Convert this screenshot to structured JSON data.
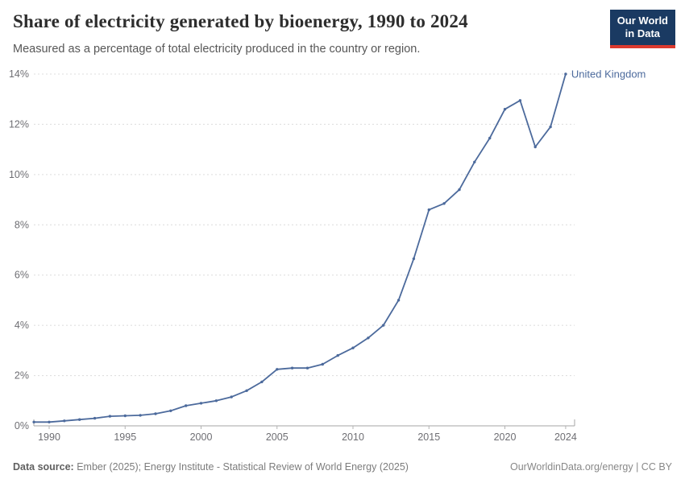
{
  "header": {
    "title": "Share of electricity generated by bioenergy, 1990 to 2024",
    "subtitle": "Measured as a percentage of total electricity produced in the country or region.",
    "logo": {
      "line1": "Our World",
      "line2": "in Data",
      "bg_color": "#1a3a62",
      "accent_color": "#dc3a2f"
    }
  },
  "chart_data": {
    "type": "line",
    "title": "Share of electricity generated by bioenergy, 1990 to 2024",
    "xlabel": "",
    "ylabel": "",
    "xlim": [
      1989,
      2024
    ],
    "ylim": [
      0,
      14
    ],
    "xticks": [
      1990,
      1995,
      2000,
      2005,
      2010,
      2015,
      2020,
      2024
    ],
    "yticks": [
      0,
      2,
      4,
      6,
      8,
      10,
      12,
      14
    ],
    "ytick_suffix": "%",
    "grid": "horizontal-dashed",
    "legend_position": "end-of-line",
    "series": [
      {
        "name": "United Kingdom",
        "color": "#4c6a9c",
        "x": [
          1989,
          1990,
          1991,
          1992,
          1993,
          1994,
          1995,
          1996,
          1997,
          1998,
          1999,
          2000,
          2001,
          2002,
          2003,
          2004,
          2005,
          2006,
          2007,
          2008,
          2009,
          2010,
          2011,
          2012,
          2013,
          2014,
          2015,
          2016,
          2017,
          2018,
          2019,
          2020,
          2021,
          2022,
          2023,
          2024
        ],
        "values": [
          0.15,
          0.15,
          0.2,
          0.25,
          0.3,
          0.38,
          0.4,
          0.42,
          0.48,
          0.6,
          0.8,
          0.9,
          1.0,
          1.15,
          1.4,
          1.75,
          2.25,
          2.3,
          2.3,
          2.45,
          2.8,
          3.1,
          3.5,
          4.0,
          5.0,
          6.65,
          8.6,
          8.85,
          9.4,
          10.5,
          11.45,
          12.6,
          12.95,
          11.1,
          11.9,
          14.0
        ]
      }
    ]
  },
  "footer": {
    "source_label": "Data source:",
    "source_text": " Ember (2025); Energy Institute - Statistical Review of World Energy (2025)",
    "right_text": "OurWorldinData.org/energy | CC BY"
  }
}
